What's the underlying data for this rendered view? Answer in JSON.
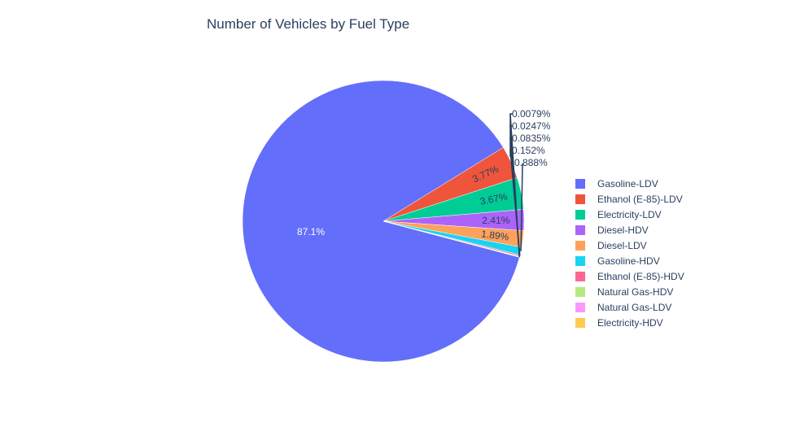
{
  "chart_data": {
    "type": "pie",
    "title": "Number of Vehicles by Fuel Type",
    "slices": [
      {
        "label": "Gasoline-LDV",
        "percent": 87.1,
        "percent_label": "87.1%",
        "color": "#636efa",
        "text_inside": true
      },
      {
        "label": "Ethanol (E-85)-LDV",
        "percent": 3.77,
        "percent_label": "3.77%",
        "color": "#EF553B",
        "text_inside": true
      },
      {
        "label": "Electricity-LDV",
        "percent": 3.67,
        "percent_label": "3.67%",
        "color": "#00cc96",
        "text_inside": true
      },
      {
        "label": "Diesel-HDV",
        "percent": 2.41,
        "percent_label": "2.41%",
        "color": "#ab63fa",
        "text_inside": true
      },
      {
        "label": "Diesel-LDV",
        "percent": 1.89,
        "percent_label": "1.89%",
        "color": "#FFA15A",
        "text_inside": true
      },
      {
        "label": "Gasoline-HDV",
        "percent": 0.888,
        "percent_label": "0.888%",
        "color": "#19d3f3",
        "text_inside": false
      },
      {
        "label": "Ethanol (E-85)-HDV",
        "percent": 0.152,
        "percent_label": "0.152%",
        "color": "#FF6692",
        "text_inside": false
      },
      {
        "label": "Natural Gas-HDV",
        "percent": 0.0835,
        "percent_label": "0.0835%",
        "color": "#B6E880",
        "text_inside": false
      },
      {
        "label": "Natural Gas-LDV",
        "percent": 0.0247,
        "percent_label": "0.0247%",
        "color": "#FF97FF",
        "text_inside": false
      },
      {
        "label": "Electricity-HDV",
        "percent": 0.0079,
        "percent_label": "0.0079%",
        "color": "#FECB52",
        "text_inside": false
      }
    ],
    "direction": "clockwise",
    "sort": "descending",
    "legend_position": "right"
  }
}
